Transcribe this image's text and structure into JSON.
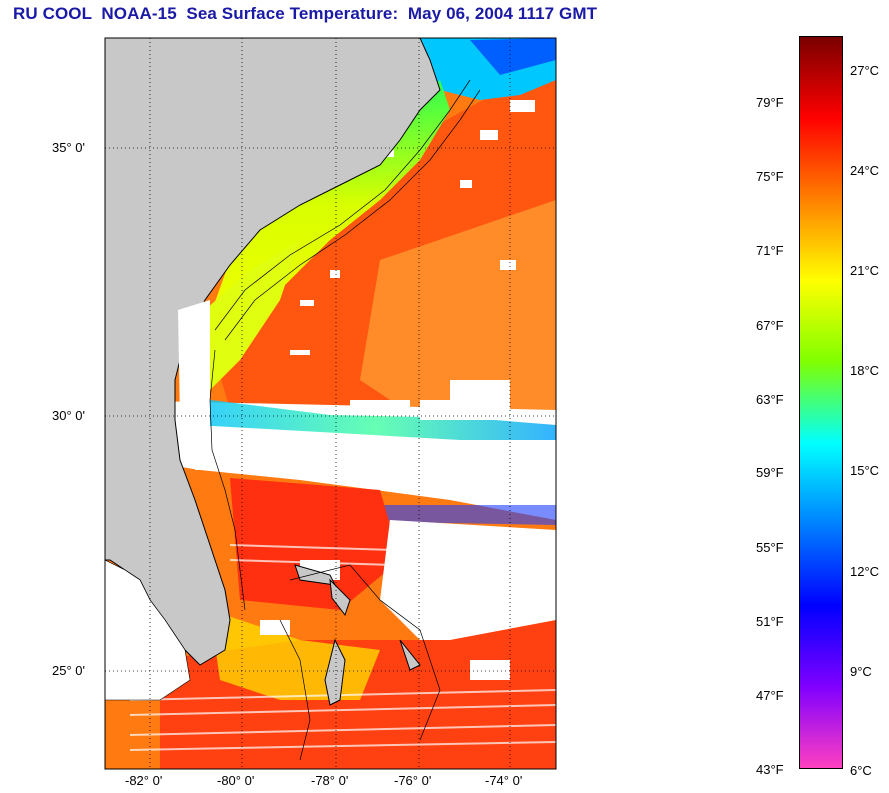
{
  "title": "RU COOL  NOAA-15  Sea Surface Temperature:  May 06, 2004 1117 GMT",
  "map": {
    "latitude_labels": [
      "35° 0'",
      "30° 0'",
      "25° 0'"
    ],
    "longitude_labels": [
      "-82° 0'",
      "-80° 0'",
      "-78° 0'",
      "-76° 0'",
      "-74° 0'"
    ],
    "land_color": "#c8c8c8",
    "cloud_color": "#ffffff"
  },
  "colorbar": {
    "fahrenheit_labels": [
      "79°F",
      "75°F",
      "71°F",
      "67°F",
      "63°F",
      "59°F",
      "55°F",
      "51°F",
      "47°F",
      "43°F"
    ],
    "celsius_labels": [
      "27°C",
      "24°C",
      "21°C",
      "18°C",
      "15°C",
      "12°C",
      "9°C",
      "6°C"
    ],
    "colors": [
      "#7a0000",
      "#ff0000",
      "#ff8000",
      "#ffff00",
      "#80ff00",
      "#00ffff",
      "#0080ff",
      "#0000ff",
      "#8000ff",
      "#ff40c0"
    ]
  }
}
